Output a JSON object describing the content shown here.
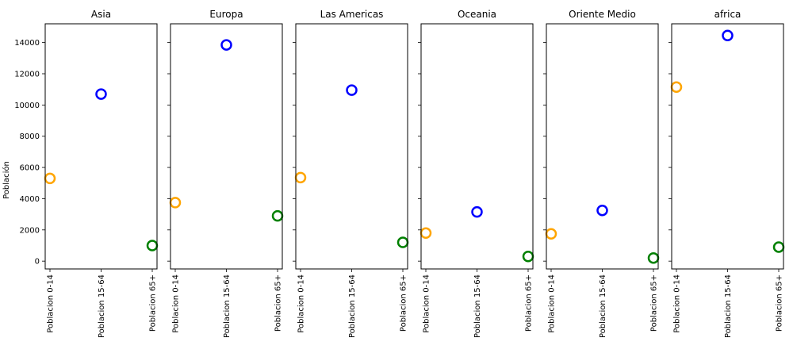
{
  "chart_data": {
    "type": "scatter",
    "ylabel": "Población",
    "ylim": [
      -500,
      15200
    ],
    "yticks": [
      0,
      2000,
      4000,
      6000,
      8000,
      10000,
      12000,
      14000
    ],
    "categories": [
      "Poblacion 0-14",
      "Poblacion 15-64",
      "Poblacion 65+"
    ],
    "category_colors": [
      "#FFA500",
      "#0000FF",
      "#008000"
    ],
    "grid": false,
    "panels": [
      {
        "title": "Asia",
        "values": [
          5300,
          10700,
          1000
        ]
      },
      {
        "title": "Europa",
        "values": [
          3750,
          13850,
          2900
        ]
      },
      {
        "title": "Las Americas",
        "values": [
          5350,
          10950,
          1200
        ]
      },
      {
        "title": "Oceania",
        "values": [
          1800,
          3150,
          300
        ]
      },
      {
        "title": "Oriente Medio",
        "values": [
          1750,
          3250,
          200
        ]
      },
      {
        "title": "africa",
        "values": [
          11150,
          14450,
          900
        ]
      }
    ]
  }
}
